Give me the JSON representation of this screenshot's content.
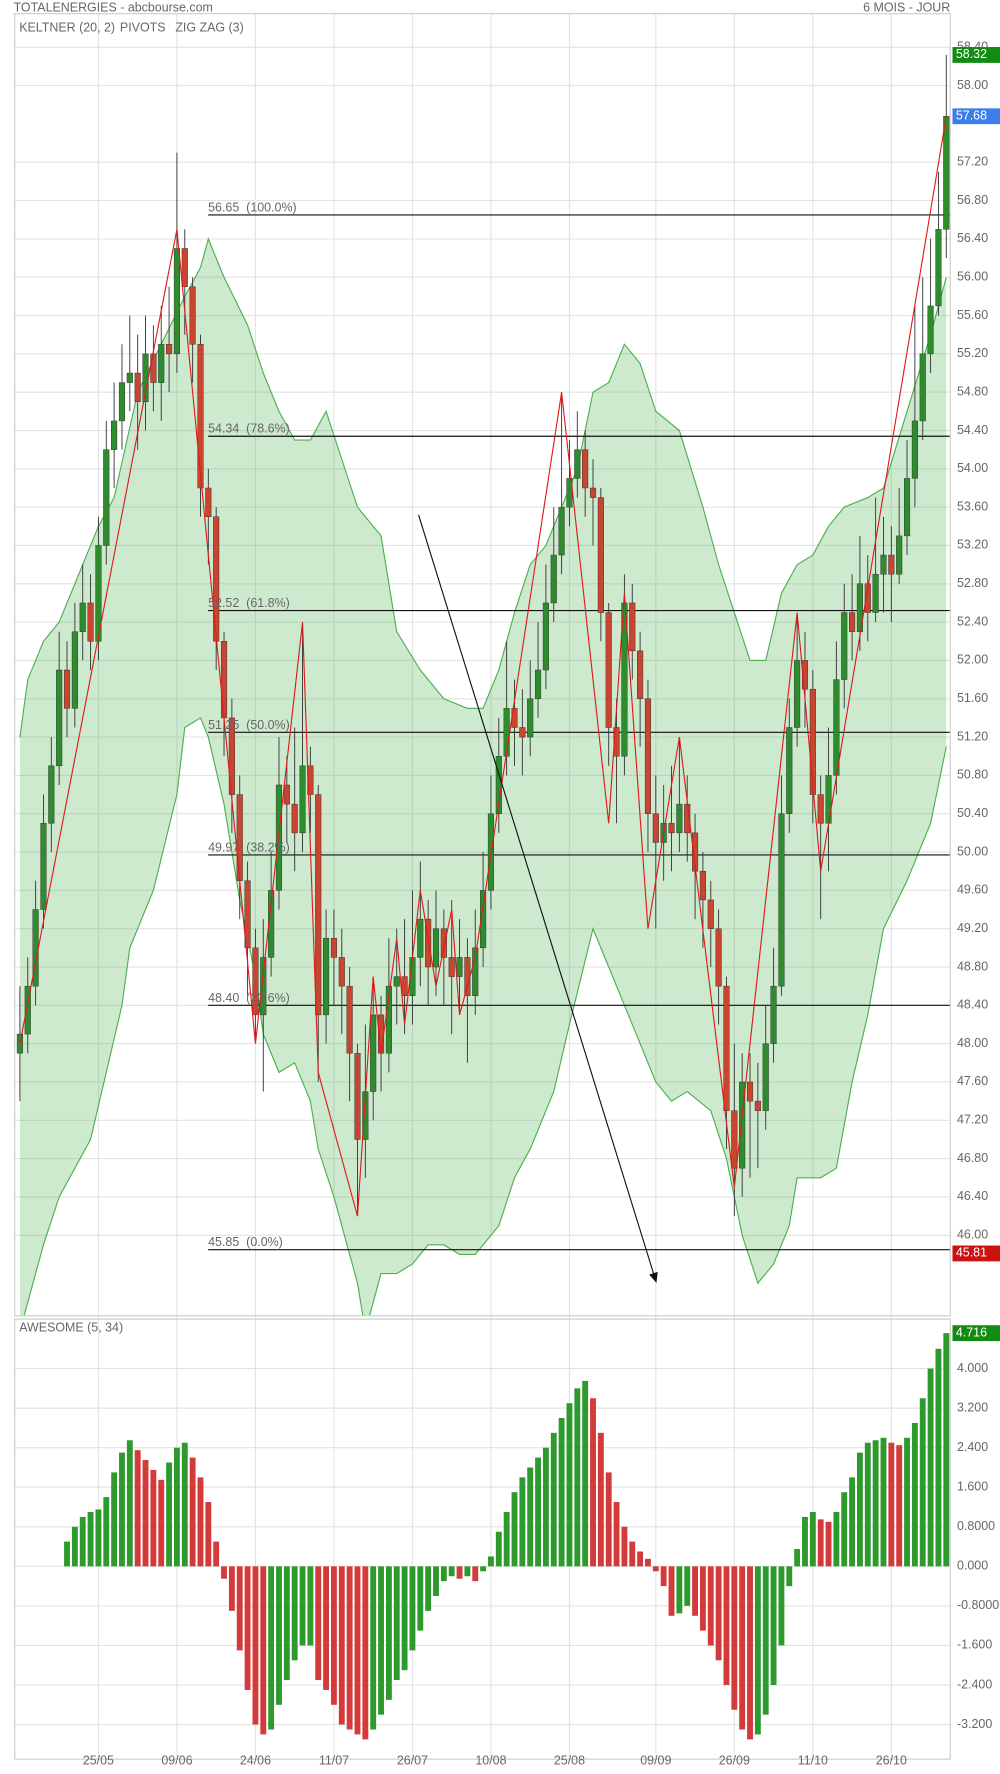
{
  "header": {
    "source": "TOTALENERGIES - abcbourse.com",
    "period": "6 MOIS - JOUR"
  },
  "chart_data": [
    {
      "type": "candlestick",
      "categories": [
        null,
        null,
        null,
        null,
        null,
        null,
        null,
        null,
        null,
        null,
        "25/05",
        null,
        null,
        null,
        null,
        null,
        null,
        null,
        null,
        null,
        "09/06",
        null,
        null,
        null,
        null,
        null,
        null,
        null,
        null,
        null,
        "24/06",
        null,
        null,
        null,
        null,
        null,
        null,
        null,
        null,
        null,
        "11/07",
        null,
        null,
        null,
        null,
        null,
        null,
        null,
        null,
        null,
        "26/07",
        null,
        null,
        null,
        null,
        null,
        null,
        null,
        null,
        null,
        "10/08",
        null,
        null,
        null,
        null,
        null,
        null,
        null,
        null,
        null,
        "25/08",
        null,
        null,
        null,
        null,
        null,
        null,
        null,
        null,
        null,
        null,
        "09/09",
        null,
        null,
        null,
        null,
        null,
        null,
        null,
        null,
        null,
        "26/09",
        null,
        null,
        null,
        null,
        null,
        null,
        null,
        null,
        null,
        "11/10",
        null,
        null,
        null,
        null,
        null,
        null,
        null,
        null,
        null,
        "26/10",
        null,
        null,
        null,
        null,
        null,
        null,
        null
      ],
      "open": [
        47.9,
        48.1,
        48.6,
        49.4,
        50.3,
        50.9,
        51.9,
        51.5,
        52.3,
        52.6,
        52.2,
        53.2,
        54.2,
        54.5,
        54.9,
        55.0,
        54.7,
        55.2,
        54.9,
        55.3,
        55.2,
        56.3,
        55.9,
        55.3,
        53.8,
        53.5,
        52.2,
        51.4,
        50.6,
        49.7,
        49.0,
        48.3,
        48.9,
        49.6,
        50.7,
        50.5,
        50.2,
        50.9,
        50.6,
        48.3,
        49.1,
        48.9,
        48.6,
        47.9,
        47.0,
        47.5,
        48.3,
        47.9,
        48.6,
        48.7,
        48.5,
        48.9,
        49.3,
        48.8,
        49.2,
        48.9,
        48.7,
        48.9,
        48.5,
        49.0,
        49.6,
        50.4,
        51.0,
        51.5,
        51.3,
        51.2,
        51.6,
        51.9,
        52.6,
        53.1,
        53.6,
        53.9,
        54.2,
        53.8,
        53.7,
        52.5,
        51.3,
        51.0,
        52.6,
        52.1,
        51.6,
        50.4,
        50.1,
        50.3,
        50.2,
        50.5,
        50.2,
        49.8,
        49.5,
        49.2,
        48.6,
        47.3,
        46.7,
        47.6,
        47.4,
        47.3,
        48.0,
        48.6,
        50.4,
        51.3,
        52.0,
        51.7,
        50.6,
        50.3,
        50.8,
        51.8,
        52.5,
        52.3,
        52.8,
        52.5,
        52.9,
        53.1,
        52.9,
        53.3,
        53.9,
        54.5,
        55.2,
        55.7,
        56.5
      ],
      "high": [
        48.6,
        48.9,
        49.7,
        50.6,
        51.2,
        52.3,
        52.2,
        52.6,
        53.0,
        52.9,
        53.5,
        54.5,
        54.9,
        55.3,
        55.6,
        55.4,
        55.6,
        55.5,
        55.7,
        55.9,
        57.3,
        56.5,
        56.0,
        55.4,
        54.0,
        53.6,
        52.3,
        51.6,
        50.8,
        49.9,
        49.2,
        49.3,
        50.0,
        51.2,
        51.0,
        51.3,
        52.4,
        51.1,
        50.7,
        49.4,
        49.4,
        49.2,
        48.8,
        48.0,
        48.2,
        48.7,
        48.5,
        49.1,
        49.2,
        49.3,
        49.6,
        49.9,
        49.5,
        49.6,
        49.4,
        49.5,
        49.3,
        49.1,
        49.4,
        50.0,
        50.8,
        51.4,
        52.2,
        51.8,
        51.7,
        52.0,
        52.4,
        53.0,
        53.6,
        54.8,
        54.3,
        54.6,
        54.4,
        54.1,
        53.8,
        52.6,
        51.6,
        52.9,
        52.8,
        52.3,
        51.8,
        50.8,
        50.7,
        50.9,
        51.2,
        50.8,
        50.4,
        50.0,
        49.7,
        49.4,
        48.7,
        48.0,
        47.9,
        47.9,
        47.8,
        48.4,
        49.0,
        50.8,
        51.6,
        52.5,
        52.3,
        51.9,
        50.8,
        51.3,
        52.2,
        52.8,
        52.9,
        53.3,
        53.1,
        53.7,
        53.5,
        53.4,
        53.8,
        54.3,
        55.7,
        56.0,
        56.4,
        57.1,
        58.32
      ],
      "low": [
        47.4,
        47.9,
        48.4,
        49.2,
        50.0,
        50.7,
        51.2,
        51.3,
        52.0,
        51.9,
        52.0,
        53.0,
        53.8,
        54.2,
        54.6,
        54.2,
        54.4,
        54.6,
        54.5,
        54.8,
        55.0,
        55.4,
        54.9,
        53.5,
        53.0,
        51.9,
        51.0,
        50.2,
        49.3,
        48.5,
        48.0,
        47.5,
        48.7,
        49.4,
        50.1,
        49.8,
        50.0,
        50.2,
        47.6,
        48.0,
        48.4,
        48.1,
        47.4,
        46.2,
        46.6,
        47.2,
        47.5,
        47.7,
        48.2,
        48.1,
        48.2,
        48.6,
        48.4,
        48.5,
        48.4,
        48.1,
        48.3,
        47.8,
        48.3,
        48.8,
        49.4,
        50.2,
        50.8,
        50.9,
        50.8,
        51.0,
        51.4,
        51.7,
        52.4,
        52.9,
        53.4,
        53.7,
        53.5,
        53.2,
        52.2,
        50.9,
        50.3,
        50.8,
        51.8,
        51.1,
        50.0,
        49.2,
        49.7,
        49.8,
        50.0,
        49.9,
        49.3,
        49.0,
        48.8,
        48.2,
        46.9,
        46.2,
        46.4,
        46.6,
        46.7,
        47.1,
        47.8,
        48.5,
        50.2,
        51.1,
        51.3,
        50.3,
        49.3,
        49.8,
        50.6,
        51.5,
        52.0,
        52.1,
        52.2,
        52.4,
        52.5,
        52.4,
        52.8,
        53.1,
        53.6,
        54.3,
        55.0,
        55.6,
        56.2
      ],
      "close": [
        48.1,
        48.6,
        49.4,
        50.3,
        50.9,
        51.9,
        51.5,
        52.3,
        52.6,
        52.2,
        53.2,
        54.2,
        54.5,
        54.9,
        55.0,
        54.7,
        55.2,
        54.9,
        55.3,
        55.2,
        56.3,
        55.9,
        55.3,
        53.8,
        53.5,
        52.2,
        51.4,
        50.6,
        49.7,
        49.0,
        48.3,
        48.9,
        49.6,
        50.7,
        50.5,
        50.2,
        50.9,
        50.6,
        48.3,
        49.1,
        48.9,
        48.6,
        47.9,
        47.0,
        47.5,
        48.3,
        47.9,
        48.6,
        48.7,
        48.5,
        48.9,
        49.3,
        48.8,
        49.2,
        48.9,
        48.7,
        48.9,
        48.5,
        49.0,
        49.6,
        50.4,
        51.0,
        51.5,
        51.3,
        51.2,
        51.6,
        51.9,
        52.6,
        53.1,
        53.6,
        53.9,
        54.2,
        53.8,
        53.7,
        52.5,
        51.3,
        51.0,
        52.6,
        52.1,
        51.6,
        50.4,
        50.1,
        50.3,
        50.2,
        50.5,
        50.2,
        49.8,
        49.5,
        49.2,
        48.6,
        47.3,
        46.7,
        47.6,
        47.4,
        47.3,
        48.0,
        48.6,
        50.4,
        51.3,
        52.0,
        51.7,
        50.6,
        50.3,
        50.8,
        51.8,
        52.5,
        52.3,
        52.8,
        52.5,
        52.9,
        53.1,
        52.9,
        53.3,
        53.9,
        54.5,
        55.2,
        55.7,
        56.5,
        57.68
      ],
      "up_color": "#2e8b2e",
      "down_color": "#c8452f",
      "ylim": [
        45.16,
        58.42
      ],
      "yticks": [
        {
          "value": 46,
          "label": "46.00"
        },
        {
          "value": 46.4,
          "label": "46.40"
        },
        {
          "value": 46.8,
          "label": "46.80"
        },
        {
          "value": 47.2,
          "label": "47.20"
        },
        {
          "value": 47.6,
          "label": "47.60"
        },
        {
          "value": 48,
          "label": "48.00"
        },
        {
          "value": 48.4,
          "label": "48.40"
        },
        {
          "value": 48.8,
          "label": "48.80"
        },
        {
          "value": 49.2,
          "label": "49.20"
        },
        {
          "value": 49.6,
          "label": "49.60"
        },
        {
          "value": 50,
          "label": "50.00"
        },
        {
          "value": 50.4,
          "label": "50.40"
        },
        {
          "value": 50.8,
          "label": "50.80"
        },
        {
          "value": 51.2,
          "label": "51.20"
        },
        {
          "value": 51.6,
          "label": "51.60"
        },
        {
          "value": 52,
          "label": "52.00"
        },
        {
          "value": 52.4,
          "label": "52.40"
        },
        {
          "value": 52.8,
          "label": "52.80"
        },
        {
          "value": 53.2,
          "label": "53.20"
        },
        {
          "value": 53.6,
          "label": "53.60"
        },
        {
          "value": 54,
          "label": "54.00"
        },
        {
          "value": 54.4,
          "label": "54.40"
        },
        {
          "value": 54.8,
          "label": "54.80"
        },
        {
          "value": 55.2,
          "label": "55.20"
        },
        {
          "value": 55.6,
          "label": "55.60"
        },
        {
          "value": 56,
          "label": "56.00"
        },
        {
          "value": 56.4,
          "label": "56.40"
        },
        {
          "value": 56.8,
          "label": "56.80"
        },
        {
          "value": 57.2,
          "label": "57.20"
        },
        {
          "value": 58,
          "label": "58.00"
        },
        {
          "value": 58.4,
          "label": "58.40"
        }
      ],
      "grid": true,
      "keltner": {
        "name": "KELTNER (20, 2)",
        "color": "#4caf50",
        "fill": "rgba(76,175,80,0.28)",
        "upper": {
          "x": [
            0,
            1,
            3,
            5,
            8,
            10,
            12,
            15,
            18,
            21,
            23,
            24,
            26,
            29,
            31,
            33,
            35,
            37,
            39,
            41,
            43,
            46,
            48,
            51,
            54,
            57,
            59,
            61,
            63,
            65,
            67,
            69,
            71,
            73,
            75,
            77,
            79,
            81,
            84,
            87,
            89,
            91,
            93,
            95,
            97,
            99,
            101,
            103,
            105,
            108,
            110,
            113,
            116,
            118
          ],
          "values": [
            51.2,
            51.8,
            52.2,
            52.4,
            53.0,
            53.4,
            53.7,
            54.8,
            55.3,
            55.8,
            56.1,
            56.4,
            56.0,
            55.5,
            55.0,
            54.6,
            54.3,
            54.3,
            54.6,
            54.1,
            53.6,
            53.3,
            52.3,
            51.9,
            51.6,
            51.5,
            51.5,
            51.9,
            52.5,
            53.0,
            53.2,
            53.6,
            54.0,
            54.8,
            54.9,
            55.3,
            55.1,
            54.6,
            54.4,
            53.6,
            53.0,
            52.5,
            52.0,
            52.0,
            52.7,
            53.0,
            53.1,
            53.4,
            53.6,
            53.7,
            53.8,
            54.6,
            55.4,
            56.0
          ]
        },
        "lower": {
          "x": [
            0,
            3,
            5,
            9,
            13,
            14,
            17,
            20,
            21,
            23,
            24,
            26,
            28,
            30,
            31,
            33,
            35,
            37,
            38,
            40,
            41,
            43,
            44,
            46,
            48,
            50,
            52,
            54,
            56,
            58,
            61,
            63,
            65,
            68,
            70,
            73,
            75,
            77,
            79,
            81,
            83,
            85,
            88,
            90,
            92,
            94,
            96,
            98,
            99,
            102,
            104,
            106,
            108,
            110,
            113,
            116,
            118
          ],
          "values": [
            45.0,
            45.9,
            46.4,
            47.0,
            48.4,
            49.0,
            49.6,
            50.6,
            51.3,
            51.4,
            51.2,
            50.5,
            49.5,
            48.7,
            48.1,
            47.7,
            47.8,
            47.4,
            46.9,
            46.4,
            46.1,
            45.5,
            45.0,
            45.6,
            45.6,
            45.7,
            45.9,
            45.9,
            45.8,
            45.8,
            46.1,
            46.6,
            46.9,
            47.5,
            48.2,
            49.2,
            48.8,
            48.4,
            48.0,
            47.6,
            47.4,
            47.5,
            47.3,
            46.8,
            46.0,
            45.5,
            45.7,
            46.1,
            46.6,
            46.6,
            46.7,
            47.6,
            48.3,
            49.2,
            49.7,
            50.3,
            51.1
          ]
        }
      },
      "pivots": {
        "name": "PIVOTS",
        "color": "#444444"
      },
      "zigzag": {
        "name": "ZIG ZAG (3)",
        "color": "#e01b1b",
        "x": [
          0,
          20,
          30,
          36,
          38,
          43,
          45,
          46,
          48,
          49,
          51,
          53,
          55,
          56,
          58,
          69,
          75,
          77,
          80,
          84,
          91,
          99,
          102,
          118
        ],
        "values": [
          48.0,
          56.5,
          48.0,
          52.4,
          47.7,
          46.2,
          48.7,
          47.9,
          49.1,
          48.2,
          49.6,
          48.6,
          49.4,
          48.3,
          48.9,
          54.8,
          50.3,
          52.7,
          49.2,
          51.2,
          46.5,
          52.5,
          49.8,
          57.68
        ]
      },
      "fib_levels": [
        {
          "value": 56.65,
          "label": "56.65  (100.0%)"
        },
        {
          "value": 54.34,
          "label": "54.34  (78.6%)"
        },
        {
          "value": 52.52,
          "label": "52.52  (61.8%)"
        },
        {
          "value": 51.25,
          "label": "51.25  (50.0%)"
        },
        {
          "value": 49.97,
          "label": "49.97  (38.2%)"
        },
        {
          "value": 48.4,
          "label": "48.40  (23.6%)"
        },
        {
          "value": 45.85,
          "label": "45.85  (0.0%)"
        }
      ],
      "close_badge_color": "#3d7fe8",
      "high_badge_color": "#138a13",
      "low_marker": {
        "value": 45.81,
        "color": "#cc1111"
      }
    },
    {
      "type": "bar",
      "title": "AWESOME (5, 34)",
      "values": [
        null,
        null,
        null,
        null,
        null,
        null,
        0.5,
        0.8,
        1.0,
        1.1,
        1.15,
        1.4,
        1.9,
        2.3,
        2.55,
        2.35,
        2.15,
        1.95,
        1.75,
        2.1,
        2.4,
        2.5,
        2.2,
        1.8,
        1.3,
        0.5,
        -0.25,
        -0.9,
        -1.7,
        -2.5,
        -3.2,
        -3.4,
        -3.3,
        -2.8,
        -2.3,
        -1.9,
        -1.6,
        -1.6,
        -2.3,
        -2.5,
        -2.8,
        -3.2,
        -3.3,
        -3.4,
        -3.5,
        -3.3,
        -3.0,
        -2.7,
        -2.3,
        -2.1,
        -1.7,
        -1.3,
        -0.9,
        -0.6,
        -0.3,
        -0.2,
        -0.25,
        -0.2,
        -0.3,
        -0.1,
        0.2,
        0.7,
        1.1,
        1.5,
        1.8,
        2.0,
        2.2,
        2.4,
        2.7,
        3.0,
        3.3,
        3.6,
        3.75,
        3.4,
        2.7,
        1.9,
        1.3,
        0.8,
        0.5,
        0.3,
        0.15,
        -0.1,
        -0.4,
        -1.0,
        -0.95,
        -0.8,
        -1.0,
        -1.3,
        -1.6,
        -1.9,
        -2.4,
        -2.9,
        -3.3,
        -3.5,
        -3.4,
        -3.0,
        -2.4,
        -1.6,
        -0.4,
        0.35,
        1.0,
        1.1,
        0.95,
        0.9,
        1.1,
        1.5,
        1.8,
        2.3,
        2.5,
        2.55,
        2.6,
        2.5,
        2.45,
        2.6,
        2.9,
        3.4,
        4.0,
        4.4,
        4.716
      ],
      "up_color": "#2e9a2e",
      "down_color": "#d43a3a",
      "badge_color": "#138a13",
      "ylim": [
        -3.9,
        5.0
      ],
      "yticks": [
        {
          "value": 4,
          "label": "4.000"
        },
        {
          "value": 3.2,
          "label": "3.200"
        },
        {
          "value": 2.4,
          "label": "2.400"
        },
        {
          "value": 1.6,
          "label": "1.600"
        },
        {
          "value": 0.8,
          "label": "0.8000"
        },
        {
          "value": 0,
          "label": "0.000"
        },
        {
          "value": -0.8,
          "label": "-0.8000"
        },
        {
          "value": -1.6,
          "label": "-1.600"
        },
        {
          "value": -2.4,
          "label": "-2.400"
        },
        {
          "value": -3.2,
          "label": "-3.200"
        }
      ],
      "grid": true
    }
  ]
}
